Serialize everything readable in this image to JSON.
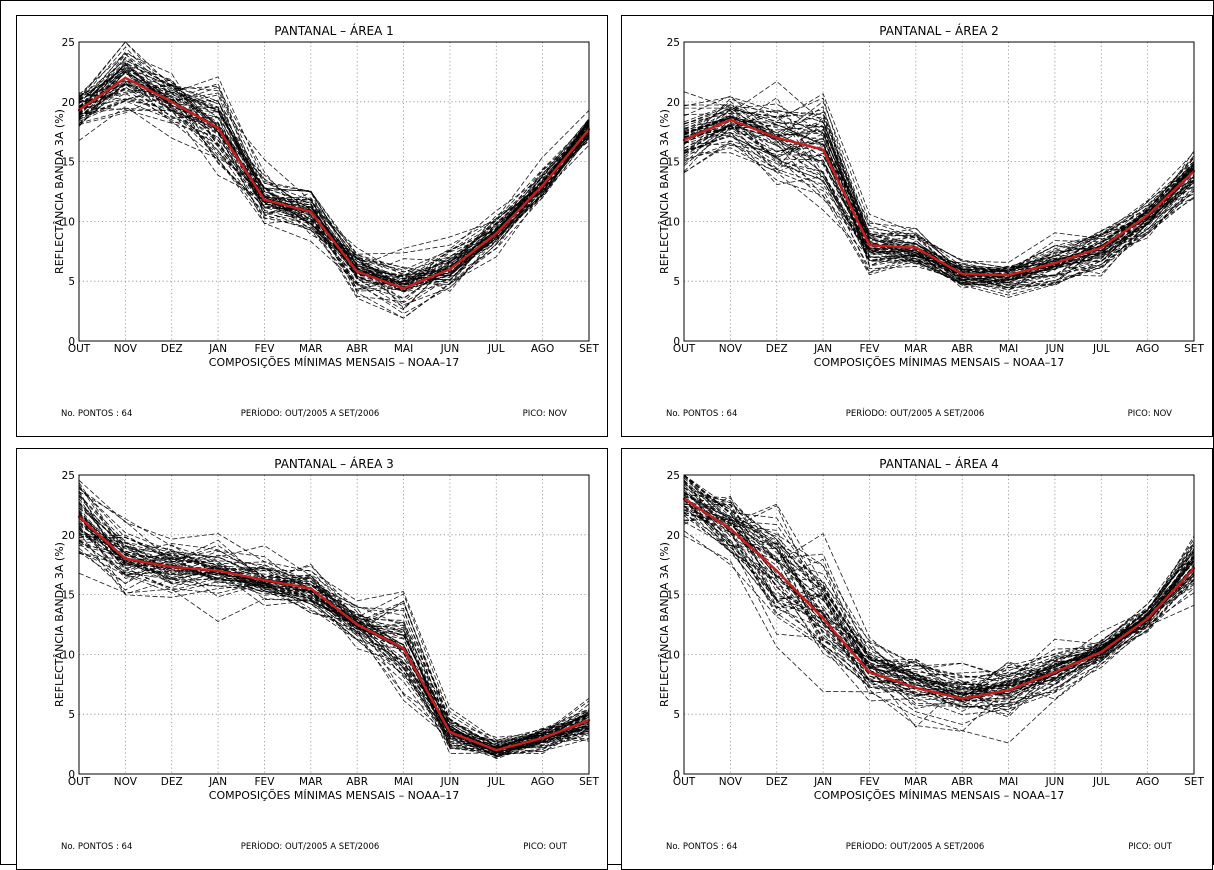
{
  "chart_data": [
    {
      "type": "line",
      "title": "PANTANAL – ÁREA 1",
      "xlabel": "COMPOSIÇÕES MÍNIMAS MENSAIS – NOAA–17",
      "ylabel": "REFLECTÂNCIA BANDA 3A (%)",
      "ylim": [
        0,
        25
      ],
      "yticks": [
        "0",
        "5",
        "10",
        "15",
        "20",
        "25"
      ],
      "categories": [
        "OUT",
        "NOV",
        "DEZ",
        "JAN",
        "FEV",
        "MAR",
        "ABR",
        "MAI",
        "JUN",
        "JUL",
        "AGO",
        "SET"
      ],
      "grid": true,
      "mean": [
        19.3,
        22.0,
        20.0,
        17.8,
        11.8,
        10.8,
        5.8,
        4.4,
        6.0,
        9.0,
        13.0,
        17.7
      ],
      "spread": [
        1.2,
        2.2,
        1.6,
        2.5,
        1.5,
        1.6,
        1.5,
        1.5,
        1.3,
        1.1,
        0.9,
        0.8
      ],
      "footer": {
        "left": "No. PONTOS :  64",
        "center": "PERÍODO: OUT/2005 A SET/2006",
        "right": "PICO: NOV"
      }
    },
    {
      "type": "line",
      "title": "PANTANAL – ÁREA 2",
      "xlabel": "COMPOSIÇÕES MÍNIMAS MENSAIS – NOAA–17",
      "ylabel": "REFLECTÂNCIA BANDA 3A (%)",
      "ylim": [
        0,
        25
      ],
      "yticks": [
        "0",
        "5",
        "10",
        "15",
        "20",
        "25"
      ],
      "categories": [
        "OUT",
        "NOV",
        "DEZ",
        "JAN",
        "FEV",
        "MAR",
        "ABR",
        "MAI",
        "JUN",
        "JUL",
        "AGO",
        "SET"
      ],
      "grid": true,
      "mean": [
        16.8,
        18.5,
        17.0,
        16.0,
        8.0,
        7.8,
        5.6,
        5.5,
        6.5,
        7.8,
        10.5,
        14.2
      ],
      "spread": [
        1.8,
        1.5,
        2.4,
        3.0,
        1.2,
        1.0,
        0.8,
        0.8,
        1.2,
        1.2,
        1.0,
        1.2
      ],
      "footer": {
        "left": "No. PONTOS :  64",
        "center": "PERÍODO: OUT/2005 A SET/2006",
        "right": "PICO: NOV"
      }
    },
    {
      "type": "line",
      "title": "PANTANAL – ÁREA 3",
      "xlabel": "COMPOSIÇÕES MÍNIMAS MENSAIS – NOAA–17",
      "ylabel": "REFLECTÂNCIA BANDA 3A (%)",
      "ylim": [
        0,
        25
      ],
      "yticks": [
        "0",
        "5",
        "10",
        "15",
        "20",
        "25"
      ],
      "categories": [
        "OUT",
        "NOV",
        "DEZ",
        "JAN",
        "FEV",
        "MAR",
        "ABR",
        "MAI",
        "JUN",
        "JUL",
        "AGO",
        "SET"
      ],
      "grid": true,
      "mean": [
        21.5,
        18.0,
        17.3,
        17.0,
        16.2,
        15.5,
        12.5,
        10.5,
        3.5,
        2.0,
        3.0,
        4.5
      ],
      "spread": [
        2.5,
        1.8,
        1.6,
        1.4,
        1.2,
        1.2,
        1.3,
        2.8,
        1.0,
        0.6,
        0.8,
        1.0
      ],
      "footer": {
        "left": "No. PONTOS :  64",
        "center": "PERÍODO: OUT/2005 A SET/2006",
        "right": "PICO: OUT"
      }
    },
    {
      "type": "line",
      "title": "PANTANAL – ÁREA 4",
      "xlabel": "COMPOSIÇÕES MÍNIMAS MENSAIS – NOAA–17",
      "ylabel": "REFLECTÂNCIA BANDA 3A (%)",
      "ylim": [
        0,
        25
      ],
      "yticks": [
        "0",
        "5",
        "10",
        "15",
        "20",
        "25"
      ],
      "categories": [
        "OUT",
        "NOV",
        "DEZ",
        "JAN",
        "FEV",
        "MAR",
        "ABR",
        "MAI",
        "JUN",
        "JUL",
        "AGO",
        "SET"
      ],
      "grid": true,
      "mean": [
        23.0,
        20.5,
        17.0,
        13.0,
        8.5,
        7.2,
        6.3,
        7.0,
        8.5,
        10.2,
        13.0,
        17.2
      ],
      "spread": [
        1.8,
        2.0,
        3.0,
        3.2,
        1.8,
        1.6,
        1.6,
        1.6,
        1.3,
        0.8,
        0.8,
        1.8
      ],
      "footer": {
        "left": "No. PONTOS :  64",
        "center": "PERÍODO: OUT/2005 A SET/2006",
        "right": "PICO: OUT"
      }
    }
  ],
  "colors": {
    "mean_line": "#c81e1e",
    "sample_lines": "#000000",
    "grid": "#8a8a8a"
  }
}
